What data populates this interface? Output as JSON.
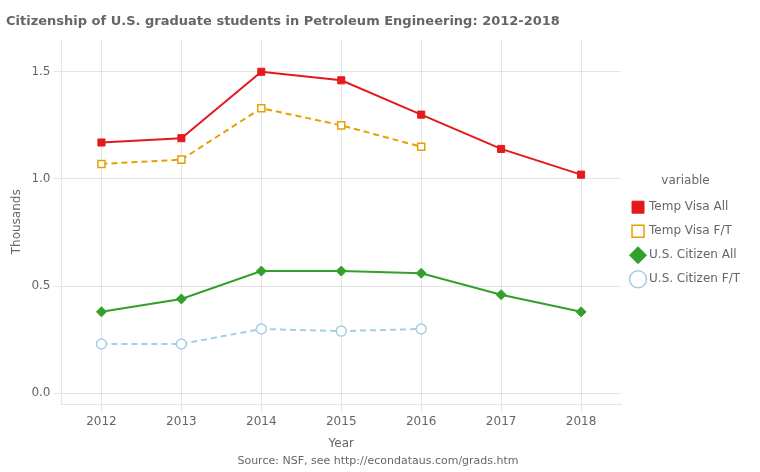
{
  "chart_data": {
    "type": "line",
    "title": "Citizenship of U.S. graduate students in Petroleum Engineering: 2012-2018",
    "source": "Source: NSF, see http://econdataus.com/grads.htm",
    "x_label": "Year",
    "y_label": "Thousands",
    "x": [
      2012,
      2013,
      2014,
      2015,
      2016,
      2017,
      2018
    ],
    "xlim": [
      2011.5,
      2018.5
    ],
    "xticks": [
      2012,
      2013,
      2014,
      2015,
      2016,
      2017,
      2018
    ],
    "ylim": [
      -0.05,
      1.65
    ],
    "yticks": [
      {
        "value": 0.0,
        "label": "0.0"
      },
      0.5,
      {
        "value": 1.0,
        "label": "1.0"
      },
      1.5
    ],
    "grid": true,
    "legend": "right",
    "legend_title": "variable",
    "series": [
      {
        "name": "Temp Visa All",
        "color": "#E31A1C",
        "marker": "square",
        "line_style": "solid",
        "values": [
          1.17,
          1.19,
          1.5,
          1.46,
          1.3,
          1.14,
          1.02
        ]
      },
      {
        "name": "Temp Visa F/T",
        "color": "#E8A000",
        "marker": "open_square",
        "line_style": "dashed",
        "values": [
          1.07,
          1.09,
          1.33,
          1.25,
          1.15,
          null,
          null
        ]
      },
      {
        "name": "U.S. Citizen All",
        "color": "#33A02C",
        "marker": "diamond",
        "line_style": "solid",
        "values": [
          0.38,
          0.44,
          0.57,
          0.57,
          0.56,
          0.46,
          0.38
        ]
      },
      {
        "name": "U.S. Citizen F/T",
        "color": "#A6CEE3",
        "marker": "open_circle",
        "line_style": "dashed",
        "values": [
          0.23,
          0.23,
          0.3,
          0.29,
          0.3,
          null,
          null
        ]
      }
    ]
  }
}
